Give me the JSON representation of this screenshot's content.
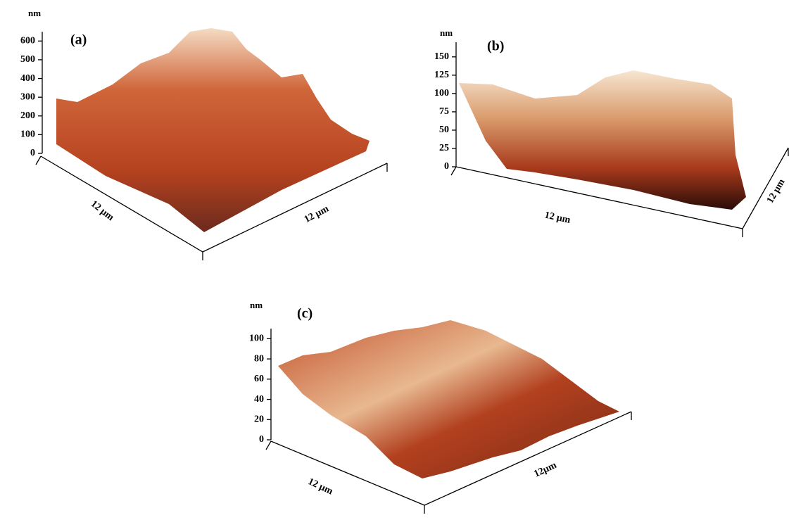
{
  "chart_data": [
    {
      "type": "surface",
      "title": "(a)",
      "zlabel": "nm",
      "xlabel": "12 μm",
      "ylabel": "12 μm",
      "zlim": [
        0,
        650
      ],
      "zticks": [
        0,
        100,
        200,
        300,
        400,
        500,
        600
      ]
    },
    {
      "type": "surface",
      "title": "(b)",
      "zlabel": "nm",
      "xlabel": "12 μm",
      "ylabel": "12 μm",
      "zlim": [
        0,
        170
      ],
      "zticks": [
        0,
        25,
        50,
        75,
        100,
        125,
        150
      ]
    },
    {
      "type": "surface",
      "title": "(c)",
      "zlabel": "nm",
      "xlabel": "12 μm",
      "ylabel": "12μm",
      "zlim": [
        0,
        110
      ],
      "zticks": [
        0,
        20,
        40,
        60,
        80,
        100
      ]
    }
  ]
}
